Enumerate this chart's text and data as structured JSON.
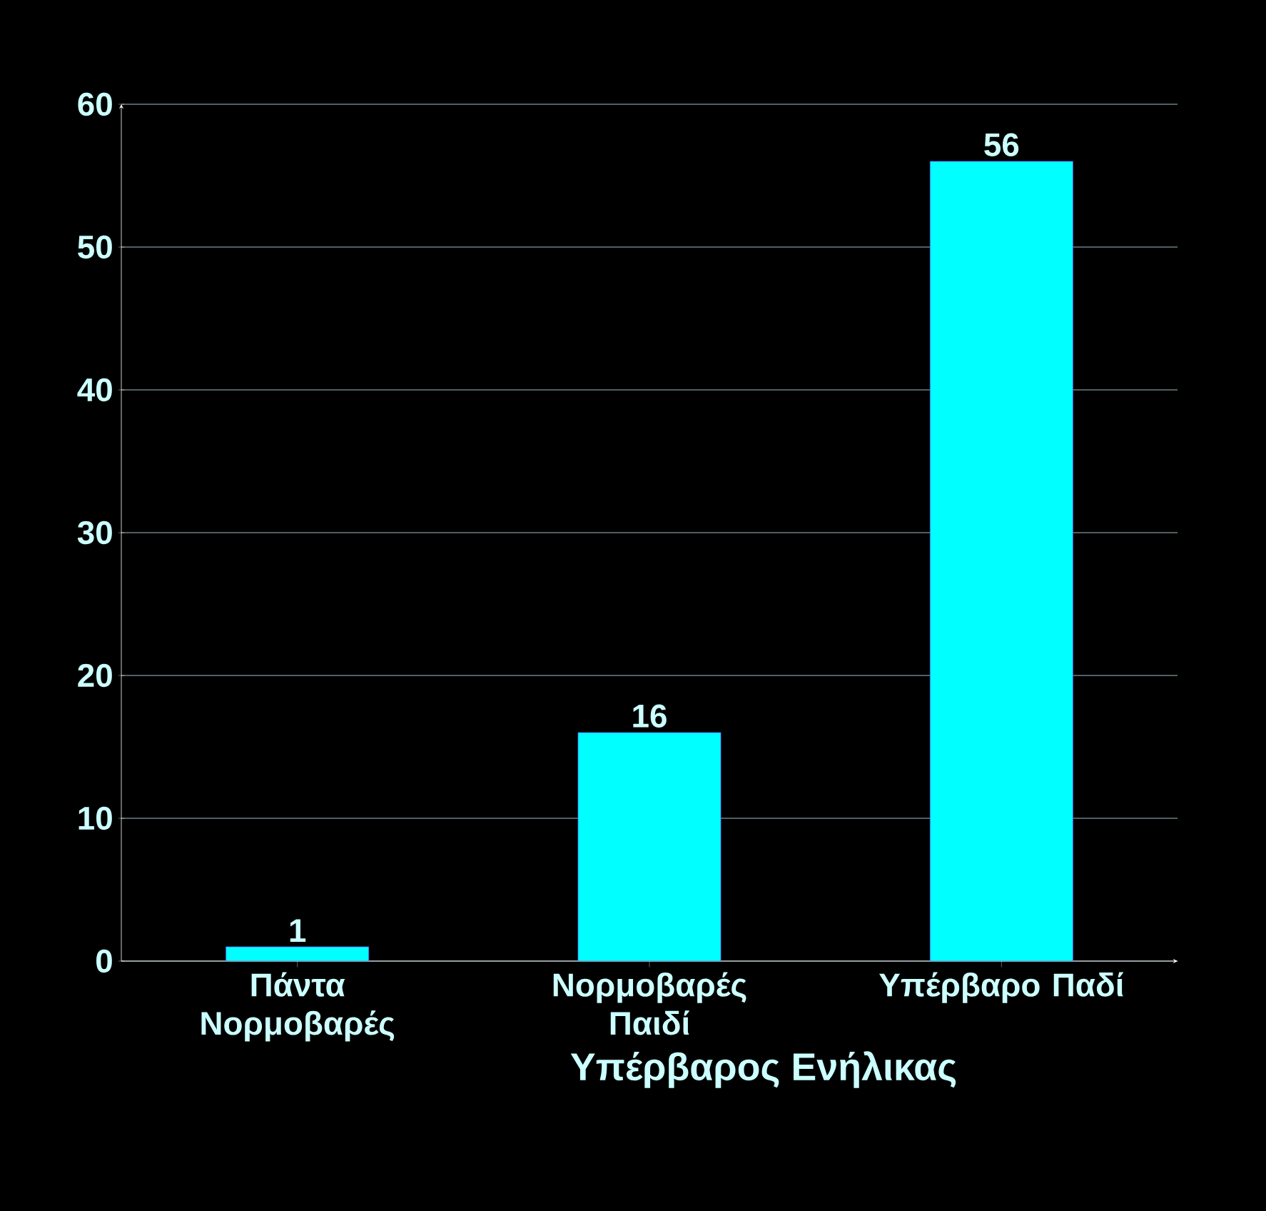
{
  "chart_data": {
    "type": "bar",
    "xlabel": "Υπέρβαρος Ενήλικας",
    "categories": [
      "Πάντα Νορμοβαρές",
      "Νορμοβαρές Παιδί",
      "Υπέρβαρο Παδί"
    ],
    "values": [
      1,
      16,
      56
    ],
    "color": "#00ffff",
    "ylim": [
      0,
      60
    ],
    "yticks": [
      0,
      10,
      20,
      30,
      40,
      50,
      60
    ],
    "grid": "y",
    "data_labels": true
  }
}
